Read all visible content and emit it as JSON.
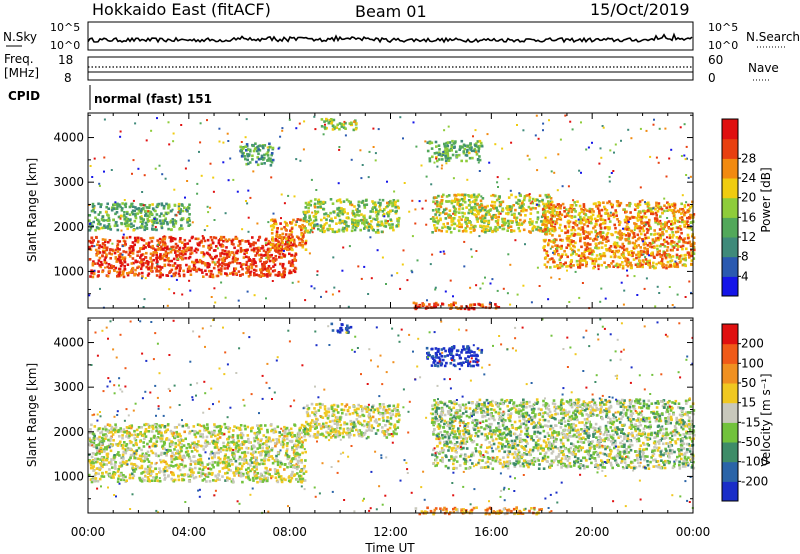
{
  "header": {
    "title": "Hokkaido East (fitACF)",
    "beam": "Beam 01",
    "date": "15/Oct/2019"
  },
  "noise_panel": {
    "left_label": "N.Sky",
    "right_label": "N.Search",
    "left_ticks": [
      "10^5",
      "10^0"
    ],
    "right_ticks": [
      "10^5",
      "10^0"
    ]
  },
  "freq_panel": {
    "left_label_line1": "Freq.",
    "left_label_line2": "[MHz]",
    "right_label": "Nave",
    "left_ticks": [
      "18",
      "8"
    ],
    "right_ticks": [
      "60",
      "0"
    ]
  },
  "cpid_panel": {
    "label": "CPID",
    "mode_text": "normal (fast) 151"
  },
  "chart_data": [
    {
      "type": "heatmap",
      "name": "power",
      "xlabel": "",
      "ylabel": "Slant Range [km]",
      "x_ticks": [
        "00:00",
        "04:00",
        "08:00",
        "12:00",
        "16:00",
        "20:00",
        "00:00"
      ],
      "y_ticks": [
        1000,
        2000,
        3000,
        4000
      ],
      "ylim": [
        180,
        4550
      ],
      "xlim_hours": [
        0,
        24
      ],
      "colorbar": {
        "label": "Power [dB]",
        "ticks": [
          "4",
          "8",
          "12",
          "16",
          "20",
          "24",
          "28"
        ],
        "colors": [
          "#1515e8",
          "#2a59b0",
          "#3f8a7a",
          "#52a85a",
          "#8ecc3a",
          "#f0cc10",
          "#f28a10",
          "#e84010",
          "#e01010"
        ]
      },
      "echo_regions": [
        {
          "start": 0.0,
          "end": 8.2,
          "range": [
            900,
            1800
          ],
          "level": 0.85
        },
        {
          "start": 7.2,
          "end": 8.6,
          "range": [
            1500,
            2200
          ],
          "level": 0.75
        },
        {
          "start": 8.5,
          "end": 12.3,
          "range": [
            1900,
            2650
          ],
          "level": 0.5
        },
        {
          "start": 13.6,
          "end": 18.5,
          "range": [
            1900,
            2750
          ],
          "level": 0.55
        },
        {
          "start": 18.0,
          "end": 24.0,
          "range": [
            1100,
            2600
          ],
          "level": 0.7
        },
        {
          "start": 0.0,
          "end": 4.0,
          "range": [
            1950,
            2550
          ],
          "level": 0.4
        },
        {
          "start": 6.0,
          "end": 7.3,
          "range": [
            3400,
            3900
          ],
          "level": 0.35
        },
        {
          "start": 9.2,
          "end": 10.6,
          "range": [
            4200,
            4450
          ],
          "level": 0.5
        },
        {
          "start": 13.4,
          "end": 15.6,
          "range": [
            3500,
            3950
          ],
          "level": 0.4
        },
        {
          "start": 12.8,
          "end": 16.3,
          "range": [
            180,
            330
          ],
          "level": 0.9
        }
      ]
    },
    {
      "type": "heatmap",
      "name": "velocity",
      "xlabel": "Time UT",
      "ylabel": "Slant Range [km]",
      "x_ticks": [
        "00:00",
        "04:00",
        "08:00",
        "12:00",
        "16:00",
        "20:00",
        "00:00"
      ],
      "y_ticks": [
        1000,
        2000,
        3000,
        4000
      ],
      "ylim": [
        180,
        4550
      ],
      "xlim_hours": [
        0,
        24
      ],
      "colorbar": {
        "label": "Velocity [m s⁻¹]",
        "ticks": [
          "200",
          "100",
          "50",
          "15",
          "-15",
          "-50",
          "-100",
          "-200"
        ],
        "colors": [
          "#1a2ec8",
          "#2a64a8",
          "#3e8c68",
          "#72c23c",
          "#c8c8bc",
          "#f0c820",
          "#f09020",
          "#f05a18",
          "#e01010"
        ]
      },
      "echo_regions": [
        {
          "start": 0.0,
          "end": 8.6,
          "range": [
            900,
            2200
          ],
          "level": 0.5
        },
        {
          "start": 8.5,
          "end": 12.3,
          "range": [
            1900,
            2650
          ],
          "level": 0.5
        },
        {
          "start": 13.6,
          "end": 24.0,
          "range": [
            1200,
            2750
          ],
          "level": 0.45
        },
        {
          "start": 13.4,
          "end": 15.6,
          "range": [
            3500,
            3950
          ],
          "level": 0.02
        },
        {
          "start": 9.6,
          "end": 10.4,
          "range": [
            4250,
            4450
          ],
          "level": 0.05
        },
        {
          "start": 12.8,
          "end": 18.0,
          "range": [
            180,
            330
          ],
          "level": 0.7
        }
      ]
    }
  ]
}
